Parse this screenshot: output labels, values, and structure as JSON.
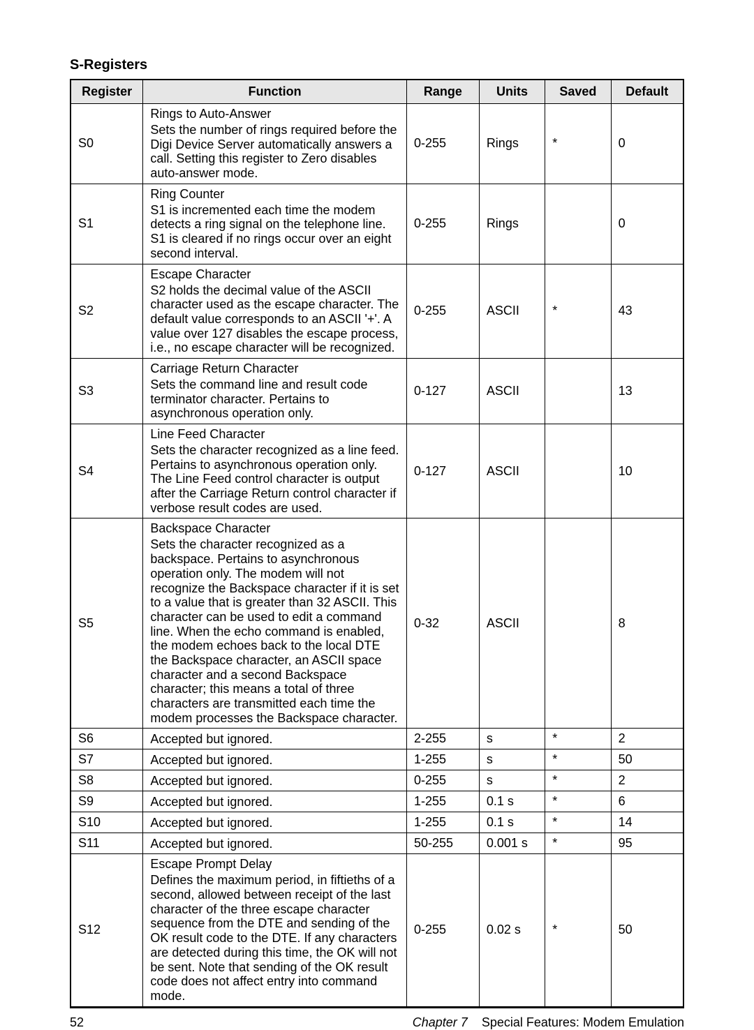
{
  "section_title": "S-Registers",
  "columns": [
    "Register",
    "Function",
    "Range",
    "Units",
    "Saved",
    "Default"
  ],
  "rows": [
    {
      "register": "S0",
      "func_title": "Rings to Auto-Answer",
      "func_desc": "Sets the number of rings required before the Digi Device Server automatically answers a call.  Setting this register to Zero disables auto-answer mode.",
      "range": "0-255",
      "units": "Rings",
      "saved": "*",
      "default": "0"
    },
    {
      "register": "S1",
      "func_title": "Ring Counter",
      "func_desc": "S1 is incremented each time the modem detects a ring signal on the telephone line. S1 is cleared if no rings occur over an eight second interval.",
      "range": "0-255",
      "units": "Rings",
      "saved": "",
      "default": "0"
    },
    {
      "register": "S2",
      "func_title": "Escape Character",
      "func_desc": "S2 holds the decimal value of the ASCII character used as the escape character. The default value corresponds to an ASCII '+'. A value over 127 disables the escape process, i.e., no escape character will be recognized.",
      "range": "0-255",
      "units": "ASCII",
      "saved": "*",
      "default": "43"
    },
    {
      "register": "S3",
      "func_title": "Carriage Return Character",
      "func_desc": "Sets the command line and result code terminator character. Pertains to asynchronous operation only.",
      "range": "0-127",
      "units": "ASCII",
      "saved": "",
      "default": "13"
    },
    {
      "register": "S4",
      "func_title": "Line Feed Character",
      "func_desc": "Sets the character recognized as a line feed. Pertains to asynchronous operation only. The Line Feed control character is output after the Carriage Return control character if verbose result codes are used.",
      "range": "0-127",
      "units": "ASCII",
      "saved": "",
      "default": "10"
    },
    {
      "register": "S5",
      "func_title": "Backspace Character",
      "func_desc": "Sets the character recognized as a backspace. Pertains to asynchronous operation only. The modem will not recognize the Backspace character if it is set to a value that is greater than 32 ASCII. This character can be used to edit a command line. When the echo command is enabled, the modem echoes back to the local DTE the Backspace character, an ASCII space character and a second Backspace character; this means a total of three characters are transmitted each time the modem processes the Backspace character.",
      "range": "0-32",
      "units": "ASCII",
      "saved": "",
      "default": "8"
    },
    {
      "register": "S6",
      "func_title": "",
      "func_desc": "Accepted but ignored.",
      "range": "2-255",
      "units": "s",
      "saved": "*",
      "default": "2"
    },
    {
      "register": "S7",
      "func_title": "",
      "func_desc": "Accepted but ignored.",
      "range": "1-255",
      "units": "s",
      "saved": "*",
      "default": "50"
    },
    {
      "register": "S8",
      "func_title": "",
      "func_desc": "Accepted but ignored.",
      "range": "0-255",
      "units": "s",
      "saved": "*",
      "default": "2"
    },
    {
      "register": "S9",
      "func_title": "",
      "func_desc": "Accepted but ignored.",
      "range": "1-255",
      "units": "0.1 s",
      "saved": "*",
      "default": "6"
    },
    {
      "register": "S10",
      "func_title": "",
      "func_desc": "Accepted but ignored.",
      "range": "1-255",
      "units": "0.1 s",
      "saved": "*",
      "default": "14"
    },
    {
      "register": "S11",
      "func_title": "",
      "func_desc": "Accepted but ignored.",
      "range": "50-255",
      "units": "0.001 s",
      "saved": "*",
      "default": "95"
    },
    {
      "register": "S12",
      "func_title": "Escape Prompt Delay",
      "func_desc": "Defines the maximum period, in fiftieths of a second, allowed between receipt of the last character of the three escape character sequence from the DTE and sending of the OK result code to the DTE. If any characters are detected during this time, the OK will not be sent. Note that sending of the OK result code does not affect entry into command mode.",
      "range": "0-255",
      "units": "0.02 s",
      "saved": "*",
      "default": "50"
    }
  ],
  "footer": {
    "page_number": "52",
    "chapter_label": "Chapter 7",
    "chapter_title": "Special Features: Modem Emulation"
  }
}
